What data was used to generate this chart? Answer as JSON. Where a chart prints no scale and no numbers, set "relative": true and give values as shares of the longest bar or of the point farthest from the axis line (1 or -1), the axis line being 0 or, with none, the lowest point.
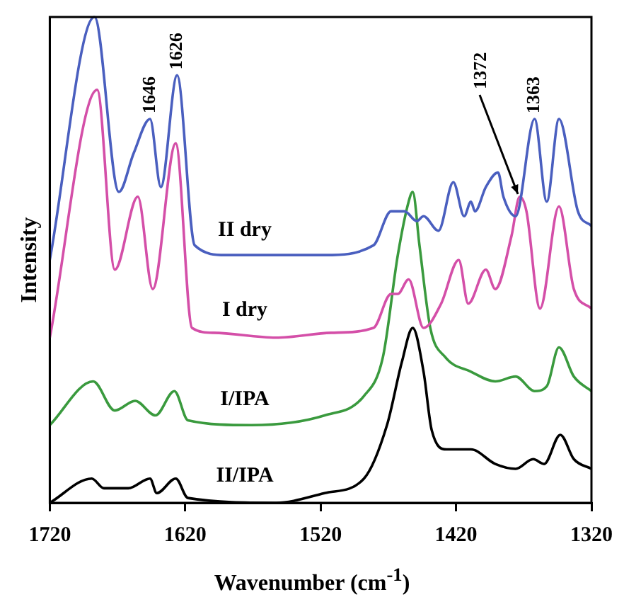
{
  "chart_data": {
    "type": "line",
    "relative": true,
    "xlabel": "Wavenumber (cm$^{-1}$)",
    "ylabel": "Intensity",
    "xlim": [
      1720,
      1320
    ],
    "xticks": [
      1720,
      1620,
      1520,
      1420,
      1320
    ],
    "legend": false,
    "grid": false,
    "marker": "none",
    "line_style": "solid",
    "annotations": [
      {
        "text": "1646",
        "x": 1646,
        "y": 0.79
      },
      {
        "text": "1626",
        "x": 1626,
        "y": 0.88
      },
      {
        "text": "1372",
        "x": 1373,
        "y": 0.63
      },
      {
        "text": "1363",
        "x": 1362,
        "y": 0.79
      }
    ],
    "series": [
      {
        "name": "II dry",
        "color": "#4a5fbf",
        "x": [
          1720,
          1687,
          1669,
          1658,
          1646,
          1638,
          1626,
          1613,
          1590,
          1517,
          1481,
          1468,
          1463,
          1458,
          1449,
          1444,
          1433,
          1422,
          1414,
          1409,
          1406,
          1398,
          1389,
          1385,
          1376,
          1362,
          1353,
          1344,
          1330,
          1320
        ],
        "values": [
          0.5,
          1.0,
          0.64,
          0.72,
          0.79,
          0.65,
          0.88,
          0.53,
          0.51,
          0.51,
          0.53,
          0.6,
          0.6,
          0.6,
          0.58,
          0.59,
          0.56,
          0.66,
          0.59,
          0.62,
          0.6,
          0.65,
          0.68,
          0.63,
          0.59,
          0.79,
          0.62,
          0.79,
          0.6,
          0.57
        ]
      },
      {
        "name": "I dry",
        "color": "#d44fa8",
        "x": [
          1720,
          1685,
          1672,
          1655,
          1644,
          1627,
          1615,
          1599,
          1553,
          1512,
          1481,
          1468,
          1463,
          1455,
          1444,
          1431,
          1418,
          1411,
          1398,
          1391,
          1379,
          1373,
          1368,
          1358,
          1344,
          1333,
          1320
        ],
        "values": [
          0.34,
          0.85,
          0.48,
          0.63,
          0.44,
          0.74,
          0.36,
          0.35,
          0.34,
          0.35,
          0.36,
          0.43,
          0.43,
          0.46,
          0.36,
          0.41,
          0.5,
          0.41,
          0.48,
          0.44,
          0.55,
          0.63,
          0.6,
          0.4,
          0.61,
          0.44,
          0.4
        ]
      },
      {
        "name": "I/IPA",
        "color": "#3a9a3e",
        "x": [
          1720,
          1688,
          1672,
          1657,
          1642,
          1628,
          1618,
          1571,
          1517,
          1488,
          1474,
          1463,
          1455,
          1452,
          1447,
          1439,
          1428,
          1409,
          1391,
          1376,
          1362,
          1353,
          1344,
          1333,
          1320
        ],
        "values": [
          0.16,
          0.25,
          0.19,
          0.21,
          0.18,
          0.23,
          0.17,
          0.16,
          0.18,
          0.22,
          0.3,
          0.51,
          0.62,
          0.64,
          0.53,
          0.36,
          0.3,
          0.27,
          0.25,
          0.26,
          0.23,
          0.24,
          0.32,
          0.26,
          0.23
        ]
      },
      {
        "name": "II/IPA",
        "color": "#000000",
        "x": [
          1720,
          1689,
          1680,
          1662,
          1646,
          1641,
          1627,
          1618,
          1553,
          1517,
          1488,
          1471,
          1460,
          1452,
          1444,
          1438,
          1427,
          1409,
          1391,
          1376,
          1363,
          1355,
          1343,
          1333,
          1320
        ],
        "values": [
          0.0,
          0.05,
          0.03,
          0.03,
          0.05,
          0.02,
          0.05,
          0.01,
          0.0,
          0.02,
          0.05,
          0.16,
          0.29,
          0.36,
          0.27,
          0.15,
          0.11,
          0.11,
          0.08,
          0.07,
          0.09,
          0.08,
          0.14,
          0.09,
          0.07
        ]
      }
    ]
  }
}
